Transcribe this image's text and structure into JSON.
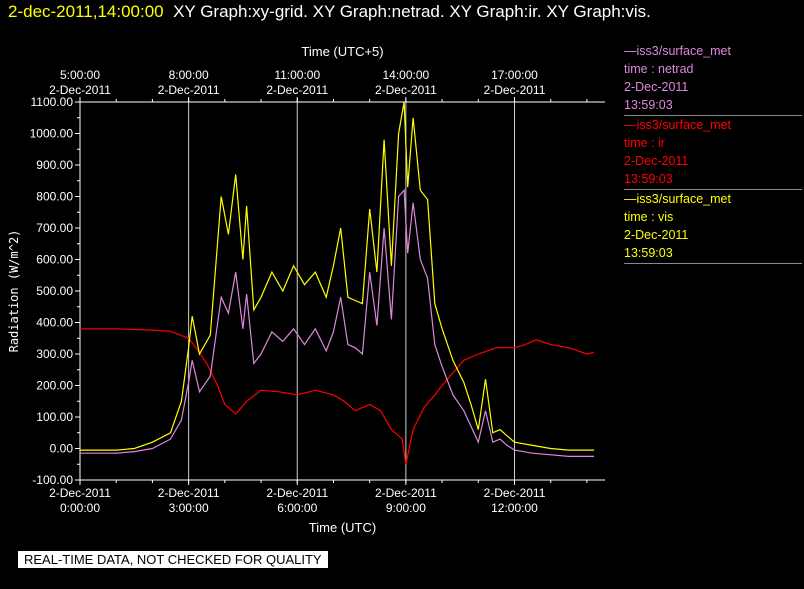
{
  "header": {
    "time": "2-dec-2011,14:00:00",
    "graphs": "XY Graph:xy-grid.  XY Graph:netrad.  XY Graph:ir.  XY Graph:vis."
  },
  "footer": {
    "notice": "REAL-TIME DATA, NOT CHECKED FOR QUALITY"
  },
  "legend": [
    {
      "source": "—iss3/surface_met",
      "var": "time : netrad",
      "date": "2-Dec-2011",
      "time": "13:59:03",
      "color": "#dd88dd"
    },
    {
      "source": "—iss3/surface_met",
      "var": "time : ir",
      "date": "2-Dec-2011",
      "time": "13:59:03",
      "color": "#ff0000"
    },
    {
      "source": "—iss3/surface_met",
      "var": "time : vis",
      "date": "2-Dec-2011",
      "time": "13:59:03",
      "color": "#ffff00"
    }
  ],
  "chart_data": {
    "type": "line",
    "ylabel": "Radiation (W/m^2)",
    "xlabel_bottom": "Time (UTC)",
    "xlabel_top": "Time (UTC+5)",
    "ylim": [
      -100,
      1100
    ],
    "xlim": [
      0,
      14.5
    ],
    "yticks": [
      "-100.00",
      "0.00",
      "100.00",
      "200.00",
      "300.00",
      "400.00",
      "500.00",
      "600.00",
      "700.00",
      "800.00",
      "900.00",
      "1000.00",
      "1100.00"
    ],
    "bottom_ticks": [
      {
        "x": 0,
        "date": "2-Dec-2011",
        "time": "0:00:00"
      },
      {
        "x": 3,
        "date": "2-Dec-2011",
        "time": "3:00:00"
      },
      {
        "x": 6,
        "date": "2-Dec-2011",
        "time": "6:00:00"
      },
      {
        "x": 9,
        "date": "2-Dec-2011",
        "time": "9:00:00"
      },
      {
        "x": 12,
        "date": "2-Dec-2011",
        "time": "12:00:00"
      }
    ],
    "top_ticks": [
      {
        "x": 0,
        "time": "5:00:00",
        "date": "2-Dec-2011"
      },
      {
        "x": 3,
        "time": "8:00:00",
        "date": "2-Dec-2011"
      },
      {
        "x": 6,
        "time": "11:00:00",
        "date": "2-Dec-2011"
      },
      {
        "x": 9,
        "time": "14:00:00",
        "date": "2-Dec-2011"
      },
      {
        "x": 12,
        "time": "17:00:00",
        "date": "2-Dec-2011"
      }
    ],
    "grid_x": [
      3,
      6,
      9,
      12
    ],
    "series": [
      {
        "name": "time : ir",
        "color": "#ff0000",
        "x": [
          0,
          1,
          2,
          2.5,
          3,
          3.2,
          3.5,
          3.8,
          4,
          4.3,
          4.6,
          5,
          5.5,
          6,
          6.5,
          7,
          7.3,
          7.6,
          8,
          8.3,
          8.6,
          8.9,
          9.0,
          9.2,
          9.5,
          9.8,
          10,
          10.3,
          10.6,
          11,
          11.5,
          12,
          12.3,
          12.6,
          13,
          13.5,
          14,
          14.2
        ],
        "y": [
          380,
          380,
          376,
          372,
          350,
          320,
          270,
          200,
          140,
          110,
          150,
          185,
          180,
          170,
          185,
          170,
          150,
          120,
          140,
          120,
          60,
          30,
          -50,
          60,
          130,
          170,
          200,
          240,
          280,
          300,
          320,
          320,
          330,
          345,
          330,
          320,
          300,
          305
        ]
      },
      {
        "name": "time : vis",
        "color": "#ffff00",
        "x": [
          0,
          1,
          1.5,
          2,
          2.5,
          2.8,
          3,
          3.1,
          3.3,
          3.6,
          3.9,
          4.1,
          4.3,
          4.5,
          4.6,
          4.8,
          5,
          5.3,
          5.6,
          5.9,
          6.2,
          6.5,
          6.8,
          7,
          7.2,
          7.4,
          7.6,
          7.8,
          8,
          8.2,
          8.4,
          8.6,
          8.8,
          8.95,
          9.05,
          9.2,
          9.4,
          9.6,
          9.8,
          10,
          10.3,
          10.6,
          10.8,
          11,
          11.2,
          11.4,
          11.6,
          11.8,
          12,
          12.5,
          13,
          13.5,
          14,
          14.2
        ],
        "y": [
          -5,
          -5,
          0,
          20,
          50,
          150,
          320,
          420,
          300,
          360,
          800,
          680,
          870,
          600,
          770,
          440,
          480,
          560,
          500,
          580,
          520,
          560,
          480,
          580,
          700,
          480,
          470,
          460,
          760,
          560,
          980,
          580,
          1000,
          1100,
          830,
          1050,
          820,
          790,
          460,
          380,
          280,
          210,
          140,
          60,
          220,
          50,
          60,
          40,
          20,
          10,
          0,
          -5,
          -5,
          -5
        ]
      },
      {
        "name": "time : netrad",
        "color": "#dd88dd",
        "x": [
          0,
          1,
          1.5,
          2,
          2.5,
          2.8,
          3,
          3.1,
          3.3,
          3.6,
          3.9,
          4.1,
          4.3,
          4.5,
          4.6,
          4.8,
          5,
          5.3,
          5.6,
          5.9,
          6.2,
          6.5,
          6.8,
          7,
          7.2,
          7.4,
          7.6,
          7.8,
          8,
          8.2,
          8.4,
          8.6,
          8.8,
          8.95,
          9.05,
          9.2,
          9.4,
          9.6,
          9.8,
          10,
          10.3,
          10.6,
          10.8,
          11,
          11.2,
          11.4,
          11.6,
          11.8,
          12,
          12.5,
          13,
          13.5,
          14,
          14.2
        ],
        "y": [
          -15,
          -15,
          -10,
          0,
          30,
          90,
          210,
          280,
          180,
          230,
          480,
          430,
          560,
          380,
          490,
          270,
          300,
          370,
          340,
          380,
          330,
          380,
          310,
          370,
          480,
          330,
          320,
          300,
          560,
          390,
          700,
          410,
          800,
          820,
          620,
          780,
          600,
          540,
          330,
          260,
          170,
          120,
          70,
          20,
          120,
          20,
          30,
          10,
          -5,
          -15,
          -20,
          -25,
          -25,
          -25
        ]
      }
    ]
  }
}
